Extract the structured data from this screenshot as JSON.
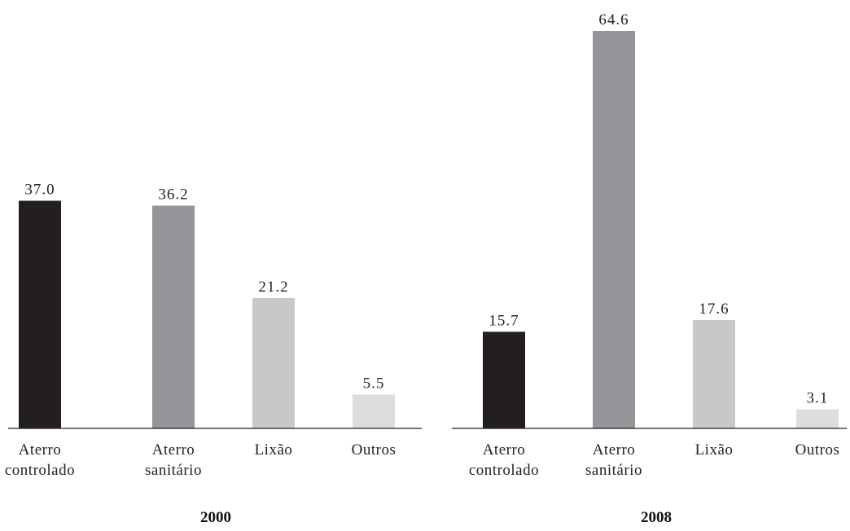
{
  "chart_data": [
    {
      "type": "bar",
      "title": "2000",
      "categories": [
        [
          "Aterro",
          "controlado"
        ],
        [
          "Aterro",
          "sanitário"
        ],
        [
          "Lixão"
        ],
        [
          "Outros"
        ]
      ],
      "values": [
        37.0,
        36.2,
        21.2,
        5.5
      ],
      "value_labels": [
        "37.0",
        "36.2",
        "21.2",
        "5.5"
      ],
      "colors": [
        "#231f20",
        "#939598",
        "#c7c8ca",
        "#dcddde"
      ],
      "xlabel": "",
      "ylabel": "",
      "ylim": [
        0,
        64.6
      ],
      "grid": false
    },
    {
      "type": "bar",
      "title": "2008",
      "categories": [
        [
          "Aterro",
          "controlado"
        ],
        [
          "Aterro",
          "sanitário"
        ],
        [
          "Lixão"
        ],
        [
          "Outros"
        ]
      ],
      "values": [
        15.7,
        64.6,
        17.6,
        3.1
      ],
      "value_labels": [
        "15.7",
        "64.6",
        "17.6",
        "3.1"
      ],
      "colors": [
        "#231f20",
        "#939598",
        "#c7c8ca",
        "#dcddde"
      ],
      "xlabel": "",
      "ylabel": "",
      "ylim": [
        0,
        64.6
      ],
      "grid": false
    }
  ]
}
